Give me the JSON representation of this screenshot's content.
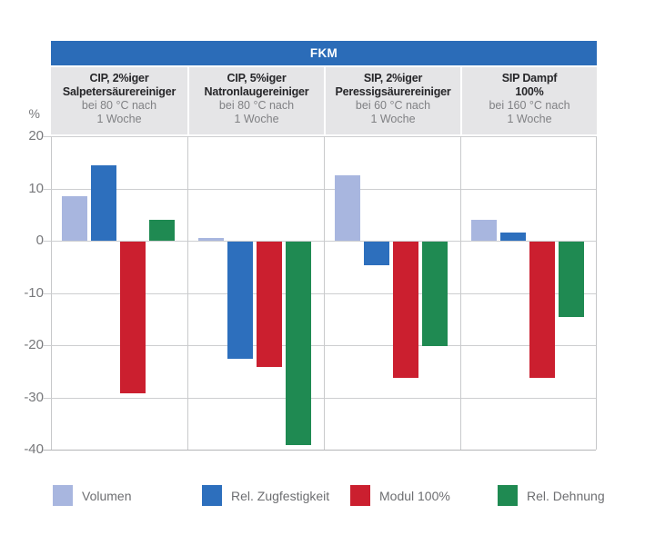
{
  "chart_data": {
    "type": "bar",
    "title": "FKM",
    "unit": "%",
    "ylim": [
      -40,
      20
    ],
    "yticks": [
      20,
      10,
      0,
      -10,
      -20,
      -30,
      -40
    ],
    "grid": true,
    "legend_position": "bottom",
    "categories": [
      {
        "line1": "CIP, 2%iger",
        "line2": "Salpetersäurereiniger",
        "line3": "bei 80 °C nach",
        "line4": "1 Woche"
      },
      {
        "line1": "CIP, 5%iger",
        "line2": "Natronlaugereiniger",
        "line3": "bei 80 °C nach",
        "line4": "1 Woche"
      },
      {
        "line1": "SIP, 2%iger",
        "line2": "Peressigsäurereiniger",
        "line3": "bei 60 °C nach",
        "line4": "1 Woche"
      },
      {
        "line1": "SIP Dampf",
        "line2": "100%",
        "line3": "bei 160 °C nach",
        "line4": "1 Woche"
      }
    ],
    "series": [
      {
        "name": "Volumen",
        "color": "#a8b6df",
        "values": [
          8.5,
          0.5,
          12.5,
          4
        ]
      },
      {
        "name": "Rel. Zugfestigkeit",
        "color": "#2d6fbd",
        "values": [
          14.5,
          -22.5,
          -4.5,
          1.5
        ]
      },
      {
        "name": "Modul 100%",
        "color": "#cb1f2f",
        "values": [
          -29,
          -24,
          -26,
          -26
        ]
      },
      {
        "name": "Rel. Dehnung",
        "color": "#1f8a52",
        "values": [
          4,
          -39,
          -20,
          -14.5
        ]
      }
    ]
  },
  "colors": {
    "title_bar_bg": "#2b6cb8",
    "header_band_bg": "#e5e5e7",
    "grid_line": "#cdced0",
    "text_dark": "#262629",
    "text_gray": "#808184"
  }
}
